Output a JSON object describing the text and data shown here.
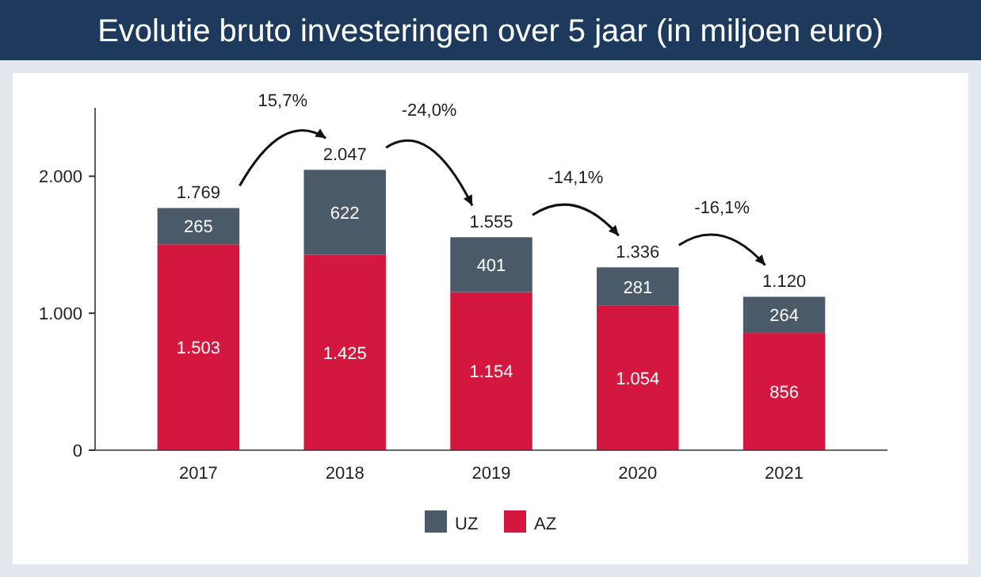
{
  "chart_data": {
    "type": "bar",
    "title": "Evolutie bruto investeringen over 5 jaar (in miljoen euro)",
    "categories": [
      "2017",
      "2018",
      "2019",
      "2020",
      "2021"
    ],
    "series": [
      {
        "name": "AZ",
        "color": "#d4173e",
        "values": [
          1503,
          1425,
          1154,
          1054,
          856
        ],
        "value_labels": [
          "1.503",
          "1.425",
          "1.154",
          "1.054",
          "856"
        ]
      },
      {
        "name": "UZ",
        "color": "#4a5a69",
        "values": [
          265,
          622,
          401,
          281,
          264
        ],
        "value_labels": [
          "265",
          "622",
          "401",
          "281",
          "264"
        ]
      }
    ],
    "stacked": true,
    "totals": [
      "1.769",
      "2.047",
      "1.555",
      "1.336",
      "1.120"
    ],
    "annotations": [
      "15,7%",
      "-24,0%",
      "-14,1%",
      "-16,1%"
    ],
    "ylim": [
      0,
      2500
    ],
    "yticks": [
      0,
      {
        "value": 1000,
        "label": "1.000"
      },
      {
        "value": 2000,
        "label": "2.000"
      }
    ],
    "grid": false,
    "legend": "bottom"
  }
}
